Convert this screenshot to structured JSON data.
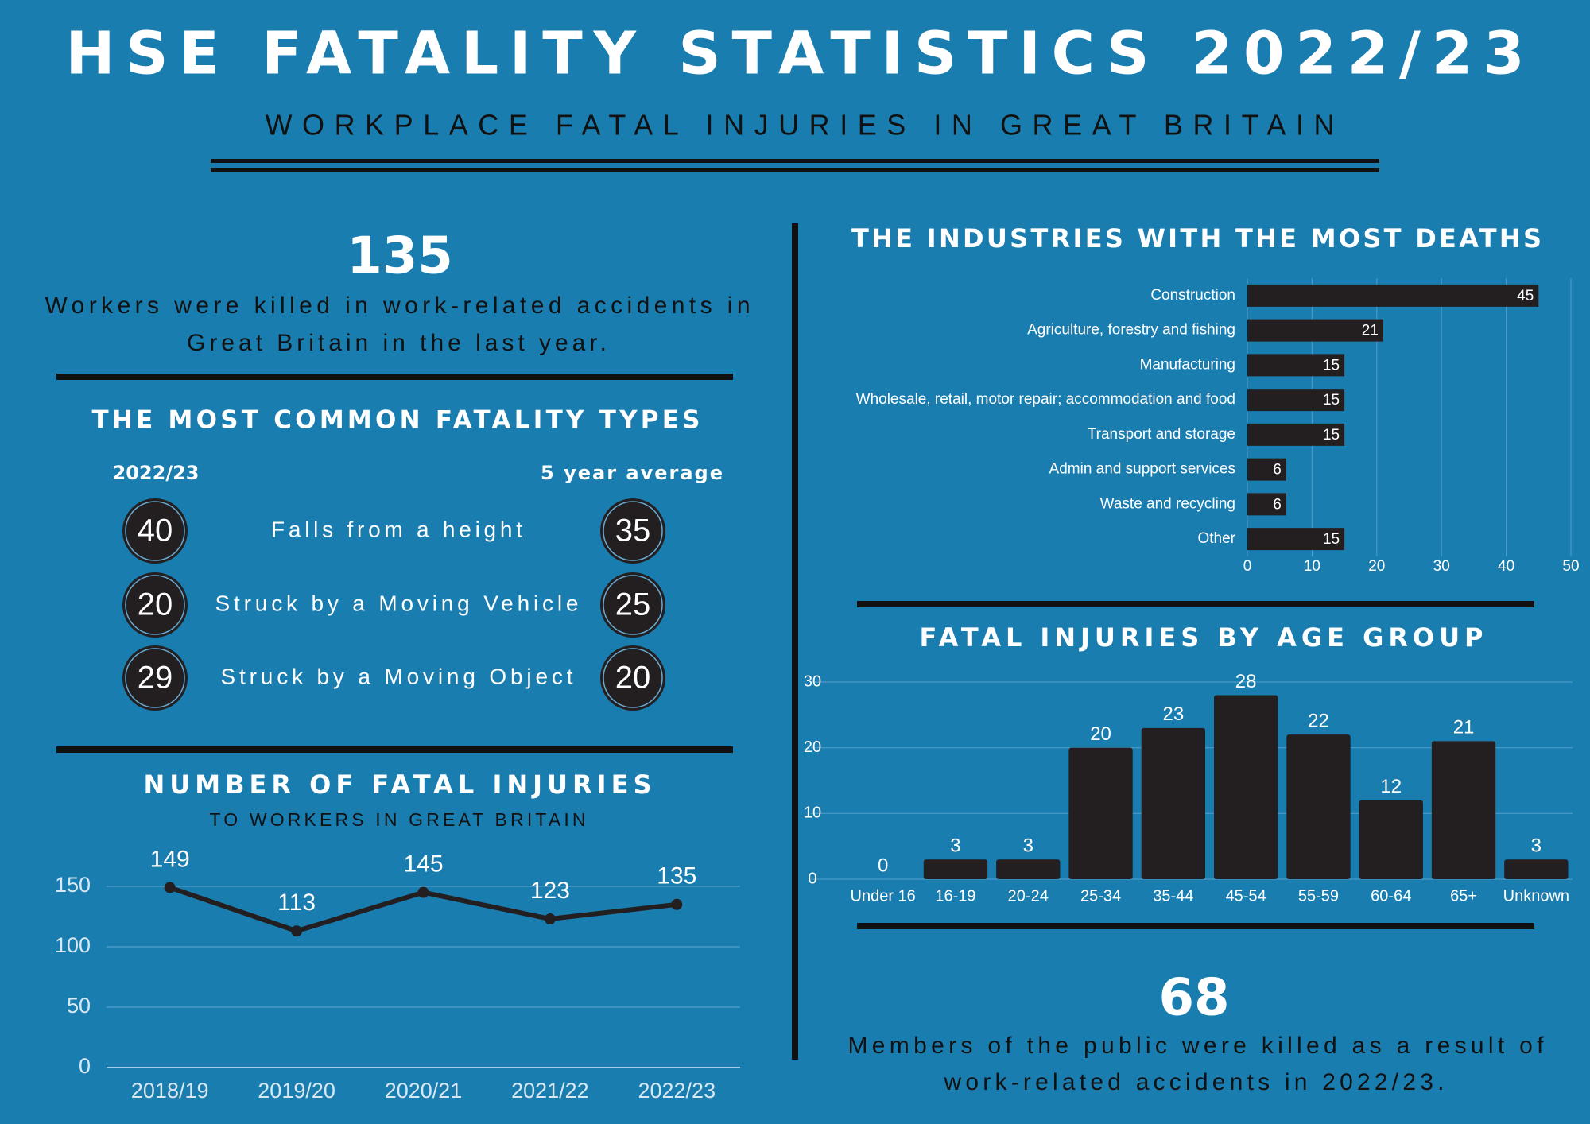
{
  "header": {
    "title": "HSE FATALITY STATISTICS 2022/23",
    "subtitle": "WORKPLACE FATAL INJURIES IN GREAT BRITAIN"
  },
  "workers_killed": {
    "number": "135",
    "lines": [
      "Workers were killed in work-related accidents in",
      "Great Britain in the last year."
    ]
  },
  "fatality_types": {
    "title": "THE MOST COMMON FATALITY TYPES",
    "col_current": "2022/23",
    "col_average": "5 year average",
    "rows": [
      {
        "current": "40",
        "label": "Falls from a height",
        "average": "35"
      },
      {
        "current": "20",
        "label": "Struck by a Moving Vehicle",
        "average": "25"
      },
      {
        "current": "29",
        "label": "Struck by a Moving Object",
        "average": "20"
      }
    ]
  },
  "public_killed": {
    "number": "68",
    "lines": [
      "Members of the public were killed as a result of",
      "work-related accidents in 2022/23."
    ]
  },
  "chart_data": [
    {
      "type": "line",
      "title": "NUMBER OF FATAL INJURIES",
      "subtitle": "TO WORKERS IN GREAT BRITAIN",
      "categories": [
        "2018/19",
        "2019/20",
        "2020/21",
        "2021/22",
        "2022/23"
      ],
      "values": [
        149,
        113,
        145,
        123,
        135
      ],
      "color": "#231f20",
      "ylim": [
        0,
        150
      ],
      "yticks": [
        0,
        50,
        100,
        150
      ],
      "grid": true
    },
    {
      "type": "bar",
      "orientation": "horizontal",
      "title": "THE INDUSTRIES WITH THE MOST DEATHS",
      "categories": [
        "Construction",
        "Agriculture, forestry and fishing",
        "Manufacturing",
        "Wholesale, retail, motor repair; accommodation and food",
        "Transport and storage",
        "Admin and support services",
        "Waste and recycling",
        "Other"
      ],
      "values": [
        45,
        21,
        15,
        15,
        15,
        6,
        6,
        15
      ],
      "color": "#231f20",
      "xlim": [
        0,
        50
      ],
      "xticks": [
        0,
        10,
        20,
        30,
        40,
        50
      ],
      "grid": true
    },
    {
      "type": "bar",
      "orientation": "vertical",
      "title": "FATAL INJURIES BY AGE GROUP",
      "categories": [
        "Under 16",
        "16-19",
        "20-24",
        "25-34",
        "35-44",
        "45-54",
        "55-59",
        "60-64",
        "65+",
        "Unknown"
      ],
      "values": [
        0,
        3,
        3,
        20,
        23,
        28,
        22,
        12,
        21,
        3
      ],
      "color": "#231f20",
      "ylim": [
        0,
        30
      ],
      "yticks": [
        0,
        10,
        20,
        30
      ],
      "grid": true
    }
  ]
}
